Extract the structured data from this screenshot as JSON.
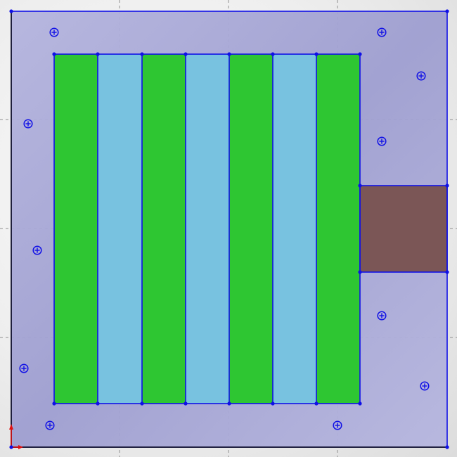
{
  "view": {
    "mode": "sketch",
    "grid_visible": true
  },
  "colors": {
    "plate_fill": "#a3a3d3",
    "sketch_line": "#1010e6",
    "strip_green": "#2ec632",
    "strip_blue": "#78c2e0",
    "block_brown": "#7b5656",
    "grid_line": "#8e8e8e",
    "origin_red": "#e01010",
    "origin_blue": "#1010e6"
  },
  "strips": [
    {
      "kind": "green"
    },
    {
      "kind": "blue"
    },
    {
      "kind": "green"
    },
    {
      "kind": "blue"
    },
    {
      "kind": "green"
    },
    {
      "kind": "blue"
    },
    {
      "kind": "green"
    }
  ],
  "side_block": {
    "kind": "brown"
  },
  "point_markers": [
    {
      "name": "point-marker-1"
    },
    {
      "name": "point-marker-2"
    },
    {
      "name": "point-marker-3"
    },
    {
      "name": "point-marker-4"
    },
    {
      "name": "point-marker-5"
    },
    {
      "name": "point-marker-6"
    },
    {
      "name": "point-marker-7"
    },
    {
      "name": "point-marker-8"
    },
    {
      "name": "point-marker-9"
    },
    {
      "name": "point-marker-10"
    },
    {
      "name": "point-marker-11"
    }
  ],
  "origin": {
    "icon": "origin-axes-icon"
  }
}
